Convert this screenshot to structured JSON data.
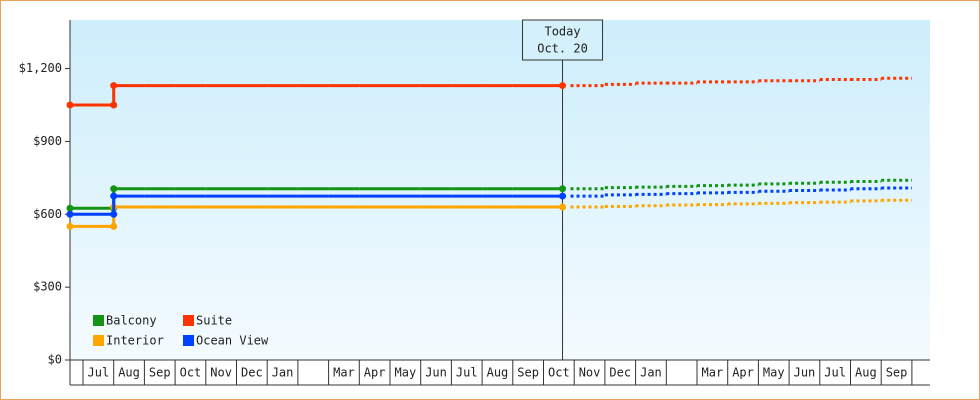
{
  "chart_data": {
    "type": "step-line",
    "categories": [
      "Jul",
      "Aug",
      "Sep",
      "Oct",
      "Nov",
      "Dec",
      "Jan",
      null,
      "Mar",
      "Apr",
      "May",
      "Jun",
      "Jul",
      "Aug",
      "Sep",
      "Oct",
      "Nov",
      "Dec",
      "Jan",
      null,
      "Mar",
      "Apr",
      "May",
      "Jun",
      "Jul",
      "Aug",
      "Sep"
    ],
    "series": [
      {
        "name": "Balcony",
        "color": "#149414",
        "values": [
          625,
          705,
          705,
          705,
          705,
          705,
          705,
          705,
          705,
          705,
          705,
          705,
          705,
          705,
          705,
          705,
          null,
          null,
          null,
          null,
          null,
          null,
          null,
          null,
          null,
          null,
          null
        ],
        "forecast_values": [
          null,
          null,
          null,
          null,
          null,
          null,
          null,
          null,
          null,
          null,
          null,
          null,
          null,
          null,
          null,
          null,
          705,
          710,
          712,
          715,
          718,
          720,
          725,
          728,
          732,
          735,
          740
        ]
      },
      {
        "name": "Suite",
        "color": "#ff3300",
        "values": [
          1050,
          1130,
          1130,
          1130,
          1130,
          1130,
          1130,
          1130,
          1130,
          1130,
          1130,
          1130,
          1130,
          1130,
          1130,
          1130,
          null,
          null,
          null,
          null,
          null,
          null,
          null,
          null,
          null,
          null,
          null
        ],
        "forecast_values": [
          null,
          null,
          null,
          null,
          null,
          null,
          null,
          null,
          null,
          null,
          null,
          null,
          null,
          null,
          null,
          null,
          1130,
          1135,
          1140,
          1140,
          1145,
          1145,
          1150,
          1150,
          1155,
          1155,
          1160
        ]
      },
      {
        "name": "Interior",
        "color": "#ffa500",
        "values": [
          550,
          630,
          630,
          630,
          630,
          630,
          630,
          630,
          630,
          630,
          630,
          630,
          630,
          630,
          630,
          630,
          null,
          null,
          null,
          null,
          null,
          null,
          null,
          null,
          null,
          null,
          null
        ],
        "forecast_values": [
          null,
          null,
          null,
          null,
          null,
          null,
          null,
          null,
          null,
          null,
          null,
          null,
          null,
          null,
          null,
          null,
          630,
          632,
          635,
          638,
          640,
          643,
          645,
          648,
          650,
          655,
          658
        ]
      },
      {
        "name": "Ocean View",
        "color": "#0040ff",
        "values": [
          600,
          675,
          675,
          675,
          675,
          675,
          675,
          675,
          675,
          675,
          675,
          675,
          675,
          675,
          675,
          675,
          null,
          null,
          null,
          null,
          null,
          null,
          null,
          null,
          null,
          null,
          null
        ],
        "forecast_values": [
          null,
          null,
          null,
          null,
          null,
          null,
          null,
          null,
          null,
          null,
          null,
          null,
          null,
          null,
          null,
          null,
          675,
          680,
          682,
          685,
          688,
          690,
          695,
          698,
          700,
          705,
          708
        ]
      }
    ],
    "ylim": [
      0,
      1400
    ],
    "yticks": [
      {
        "value": 0,
        "label": "$0"
      },
      {
        "value": 300,
        "label": "$300"
      },
      {
        "value": 600,
        "label": "$600"
      },
      {
        "value": 900,
        "label": "$900"
      },
      {
        "value": 1200,
        "label": "$1,200"
      }
    ],
    "annotation": {
      "label": "Today",
      "date": "Oct. 20"
    },
    "legend": "bottom-left"
  }
}
